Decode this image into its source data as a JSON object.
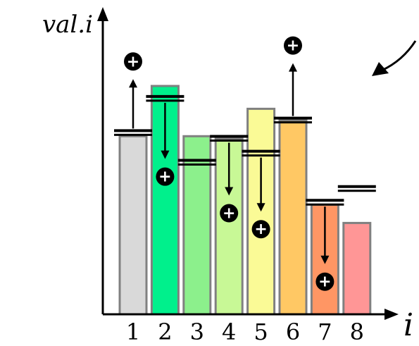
{
  "chart_data": {
    "type": "bar",
    "ylabel": "val.i",
    "xlabel": "i",
    "ylim": [
      0,
      100
    ],
    "categories": [
      "1",
      "2",
      "3",
      "4",
      "5",
      "6",
      "7",
      "8"
    ],
    "values": [
      78,
      100,
      78,
      77,
      90,
      85,
      48,
      40
    ],
    "colors": [
      "#d9d9d9",
      "#00f08c",
      "#8cf08c",
      "#c8f896",
      "#fafa96",
      "#ffc864",
      "#ff9664",
      "#ff9696"
    ],
    "bar_border_color": "#808080",
    "markers": [
      {
        "category": "1",
        "value": 79.5,
        "arrow_to": 103,
        "direction": "up"
      },
      {
        "category": "2",
        "value": 94.5,
        "arrow_to": 68,
        "direction": "down"
      },
      {
        "category": "3",
        "value": 66.5,
        "arrow_to": null,
        "direction": "none"
      },
      {
        "category": "4",
        "value": 77,
        "arrow_to": 52,
        "direction": "down"
      },
      {
        "category": "5",
        "value": 70.5,
        "arrow_to": 45,
        "direction": "down"
      },
      {
        "category": "6",
        "value": 85,
        "arrow_to": 110,
        "direction": "up"
      },
      {
        "category": "7",
        "value": 49,
        "arrow_to": 22,
        "direction": "down"
      },
      {
        "category": "8",
        "value": 55,
        "arrow_to": null,
        "direction": "none"
      }
    ],
    "plus_symbol": "+",
    "pointer_arrow_color": "#000000"
  }
}
